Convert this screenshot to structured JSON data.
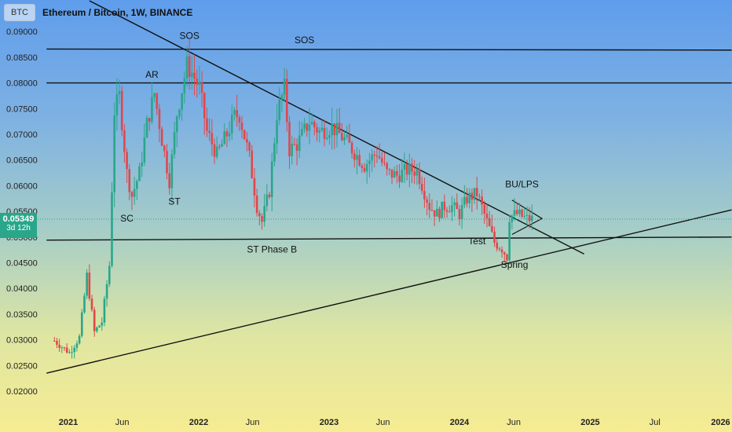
{
  "symbol_badge": "BTC",
  "title": "Ethereum / Bitcoin, 1W, BINANCE",
  "current": {
    "price_label": "0.05349",
    "time_label": "3d 12h",
    "color": "#2aa68a"
  },
  "colors": {
    "up": "#2aa68a",
    "down": "#e0474c"
  },
  "chart_data": {
    "type": "candlestick",
    "ylim": [
      0.019,
      0.0925
    ],
    "y_ticks": [
      "0.02000",
      "0.02500",
      "0.03000",
      "0.03500",
      "0.04000",
      "0.04500",
      "0.05000",
      "0.05500",
      "0.06000",
      "0.06500",
      "0.07000",
      "0.07500",
      "0.08000",
      "0.08500",
      "0.09000"
    ],
    "x_ticks": [
      {
        "label": "2021",
        "date": "2021-01-01",
        "bold": true
      },
      {
        "label": "Jun",
        "date": "2021-06-01",
        "bold": false
      },
      {
        "label": "2022",
        "date": "2022-01-01",
        "bold": true
      },
      {
        "label": "Jun",
        "date": "2022-06-01",
        "bold": false
      },
      {
        "label": "2023",
        "date": "2023-01-01",
        "bold": true
      },
      {
        "label": "Jun",
        "date": "2023-06-01",
        "bold": false
      },
      {
        "label": "2024",
        "date": "2024-01-01",
        "bold": true
      },
      {
        "label": "Jun",
        "date": "2024-06-01",
        "bold": false
      },
      {
        "label": "2025",
        "date": "2025-01-01",
        "bold": true
      },
      {
        "label": "Jul",
        "date": "2025-07-01",
        "bold": false
      },
      {
        "label": "2026",
        "date": "2026-01-01",
        "bold": true
      }
    ],
    "path": [
      [
        "2020-11-23",
        0.0298
      ],
      [
        "2021-01-04",
        0.0275
      ],
      [
        "2021-02-01",
        0.0305
      ],
      [
        "2021-02-22",
        0.0425
      ],
      [
        "2021-03-15",
        0.0315
      ],
      [
        "2021-04-05",
        0.0335
      ],
      [
        "2021-04-26",
        0.0445
      ],
      [
        "2021-05-10",
        0.0745
      ],
      [
        "2021-05-24",
        0.0775
      ],
      [
        "2021-06-14",
        0.0625
      ],
      [
        "2021-06-28",
        0.058
      ],
      [
        "2021-07-19",
        0.0625
      ],
      [
        "2021-08-09",
        0.072
      ],
      [
        "2021-08-30",
        0.078
      ],
      [
        "2021-09-20",
        0.069
      ],
      [
        "2021-10-11",
        0.061
      ],
      [
        "2021-11-01",
        0.074
      ],
      [
        "2021-11-29",
        0.0835
      ],
      [
        "2021-12-13",
        0.082
      ],
      [
        "2022-01-03",
        0.079
      ],
      [
        "2022-01-24",
        0.0705
      ],
      [
        "2022-02-21",
        0.066
      ],
      [
        "2022-03-21",
        0.07
      ],
      [
        "2022-04-11",
        0.0735
      ],
      [
        "2022-04-25",
        0.0738
      ],
      [
        "2022-05-23",
        0.0655
      ],
      [
        "2022-06-13",
        0.056
      ],
      [
        "2022-06-27",
        0.053
      ],
      [
        "2022-07-18",
        0.059
      ],
      [
        "2022-08-08",
        0.074
      ],
      [
        "2022-08-29",
        0.079
      ],
      [
        "2022-09-12",
        0.067
      ],
      [
        "2022-10-03",
        0.068
      ],
      [
        "2022-11-07",
        0.0725
      ],
      [
        "2022-12-05",
        0.0705
      ],
      [
        "2023-01-09",
        0.0715
      ],
      [
        "2023-02-13",
        0.069
      ],
      [
        "2023-03-13",
        0.0665
      ],
      [
        "2023-04-10",
        0.064
      ],
      [
        "2023-05-15",
        0.0665
      ],
      [
        "2023-06-12",
        0.0625
      ],
      [
        "2023-07-10",
        0.062
      ],
      [
        "2023-08-07",
        0.063
      ],
      [
        "2023-09-04",
        0.063
      ],
      [
        "2023-10-09",
        0.056
      ],
      [
        "2023-10-30",
        0.0545
      ],
      [
        "2023-11-20",
        0.056
      ],
      [
        "2023-12-11",
        0.056
      ],
      [
        "2024-01-01",
        0.0545
      ],
      [
        "2024-01-22",
        0.0575
      ],
      [
        "2024-02-19",
        0.0585
      ],
      [
        "2024-03-18",
        0.053
      ],
      [
        "2024-04-08",
        0.049
      ],
      [
        "2024-04-29",
        0.0478
      ],
      [
        "2024-05-13",
        0.0462
      ],
      [
        "2024-05-20",
        0.054
      ],
      [
        "2024-06-10",
        0.0545
      ],
      [
        "2024-07-08",
        0.0535
      ],
      [
        "2024-07-22",
        0.0535
      ]
    ],
    "annotations": [
      {
        "text": "SOS",
        "date": "2021-12-06",
        "value": 0.0886
      },
      {
        "text": "SOS",
        "date": "2022-10-24",
        "value": 0.0877
      },
      {
        "text": "AR",
        "date": "2021-08-23",
        "value": 0.081
      },
      {
        "text": "ST",
        "date": "2021-10-25",
        "value": 0.0563
      },
      {
        "text": "SC",
        "date": "2021-06-14",
        "value": 0.053
      },
      {
        "text": "ST Phase B",
        "date": "2022-07-25",
        "value": 0.047
      },
      {
        "text": "BU/LPS",
        "date": "2024-06-24",
        "value": 0.0597
      },
      {
        "text": "Test",
        "date": "2024-02-19",
        "value": 0.0486
      },
      {
        "text": "Spring",
        "date": "2024-06-03",
        "value": 0.044
      }
    ]
  }
}
